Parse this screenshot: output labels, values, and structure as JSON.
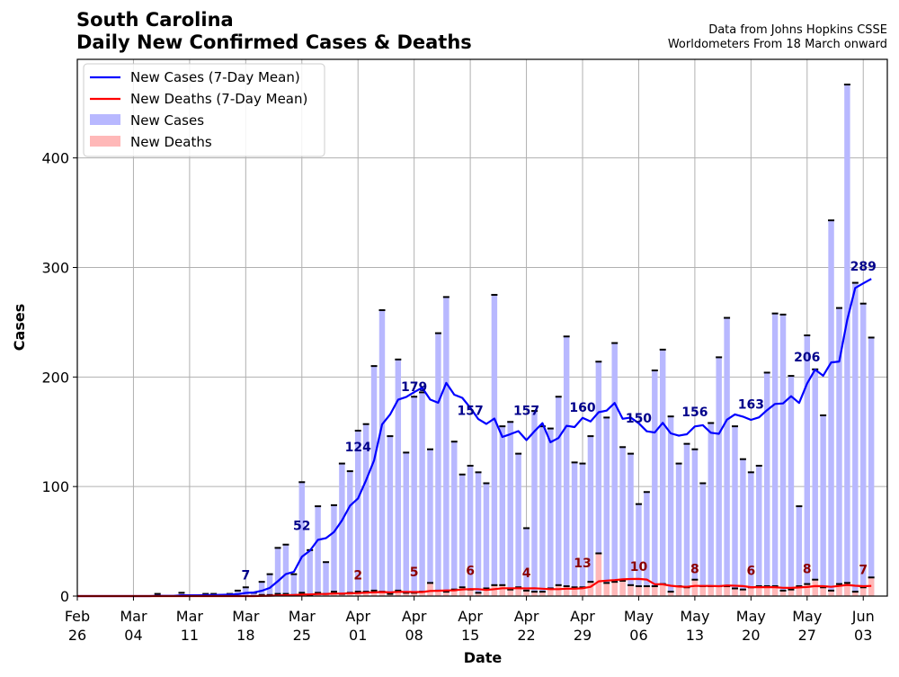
{
  "chart_data": {
    "type": "bar",
    "title_line1": "South Carolina",
    "title_line2": "Daily New Confirmed Cases & Deaths",
    "source_line1": "Data from Johns Hopkins CSSE",
    "source_line2": "Worldometers From 18 March onward",
    "xlabel": "Date",
    "ylabel": "Cases",
    "ylim": [
      0,
      490
    ],
    "yticks": [
      0,
      100,
      200,
      300,
      400
    ],
    "grid": true,
    "legend_position": "top-left",
    "x_start": "2020-02-26",
    "x_end": "2020-06-06",
    "xticks": [
      {
        "date": "2020-02-26",
        "line1": "Feb",
        "line2": "26"
      },
      {
        "date": "2020-03-04",
        "line1": "Mar",
        "line2": "04"
      },
      {
        "date": "2020-03-11",
        "line1": "Mar",
        "line2": "11"
      },
      {
        "date": "2020-03-18",
        "line1": "Mar",
        "line2": "18"
      },
      {
        "date": "2020-03-25",
        "line1": "Mar",
        "line2": "25"
      },
      {
        "date": "2020-04-01",
        "line1": "Apr",
        "line2": "01"
      },
      {
        "date": "2020-04-08",
        "line1": "Apr",
        "line2": "08"
      },
      {
        "date": "2020-04-15",
        "line1": "Apr",
        "line2": "15"
      },
      {
        "date": "2020-04-22",
        "line1": "Apr",
        "line2": "22"
      },
      {
        "date": "2020-04-29",
        "line1": "Apr",
        "line2": "29"
      },
      {
        "date": "2020-05-06",
        "line1": "May",
        "line2": "06"
      },
      {
        "date": "2020-05-13",
        "line1": "May",
        "line2": "13"
      },
      {
        "date": "2020-05-20",
        "line1": "May",
        "line2": "20"
      },
      {
        "date": "2020-05-27",
        "line1": "May",
        "line2": "27"
      },
      {
        "date": "2020-06-03",
        "line1": "Jun",
        "line2": "03"
      }
    ],
    "dates_first": "2020-02-26",
    "new_cases": [
      0,
      0,
      0,
      0,
      0,
      0,
      0,
      0,
      0,
      0,
      2,
      0,
      0,
      3,
      0,
      0,
      2,
      2,
      1,
      2,
      5,
      8,
      3,
      13,
      20,
      44,
      47,
      20,
      104,
      42,
      82,
      31,
      83,
      121,
      114,
      151,
      157,
      210,
      261,
      146,
      216,
      131,
      182,
      186,
      134,
      240,
      273,
      141,
      111,
      119,
      113,
      103,
      275,
      155,
      159,
      130,
      62,
      169,
      155,
      153,
      182,
      237,
      122,
      121,
      146,
      214,
      163,
      231,
      136,
      130,
      84,
      95,
      206,
      225,
      164,
      121,
      139,
      134,
      103,
      158,
      218,
      254,
      155,
      125,
      113,
      119,
      204,
      258,
      257,
      201,
      82,
      238,
      207,
      165,
      343,
      263,
      467,
      286,
      267,
      236
    ],
    "new_deaths": [
      0,
      0,
      0,
      0,
      0,
      0,
      0,
      0,
      0,
      0,
      0,
      0,
      0,
      0,
      0,
      0,
      0,
      0,
      0,
      0,
      0,
      0,
      0,
      1,
      1,
      2,
      2,
      1,
      3,
      1,
      3,
      2,
      4,
      2,
      3,
      4,
      4,
      5,
      4,
      2,
      5,
      3,
      3,
      4,
      12,
      5,
      4,
      6,
      8,
      6,
      3,
      7,
      10,
      10,
      6,
      8,
      5,
      4,
      4,
      7,
      10,
      9,
      8,
      8,
      13,
      39,
      12,
      13,
      14,
      10,
      9,
      9,
      9,
      11,
      4,
      9,
      8,
      15,
      9,
      9,
      9,
      9,
      7,
      6,
      8,
      9,
      9,
      9,
      5,
      6,
      9,
      11,
      15,
      8,
      5,
      11,
      12,
      4,
      8,
      17
    ],
    "annotations_cases": [
      {
        "date": "2020-03-18",
        "value": 7,
        "text": "7"
      },
      {
        "date": "2020-03-25",
        "value": 52,
        "text": "52"
      },
      {
        "date": "2020-04-01",
        "value": 124,
        "text": "124"
      },
      {
        "date": "2020-04-08",
        "value": 179,
        "text": "179"
      },
      {
        "date": "2020-04-15",
        "value": 157,
        "text": "157"
      },
      {
        "date": "2020-04-22",
        "value": 157,
        "text": "157"
      },
      {
        "date": "2020-04-29",
        "value": 160,
        "text": "160"
      },
      {
        "date": "2020-05-06",
        "value": 150,
        "text": "150"
      },
      {
        "date": "2020-05-13",
        "value": 156,
        "text": "156"
      },
      {
        "date": "2020-05-20",
        "value": 163,
        "text": "163"
      },
      {
        "date": "2020-05-27",
        "value": 206,
        "text": "206"
      },
      {
        "date": "2020-06-03",
        "value": 289,
        "text": "289"
      }
    ],
    "annotations_deaths": [
      {
        "date": "2020-04-01",
        "value": 2,
        "text": "2"
      },
      {
        "date": "2020-04-08",
        "value": 5,
        "text": "5"
      },
      {
        "date": "2020-04-15",
        "value": 6,
        "text": "6"
      },
      {
        "date": "2020-04-22",
        "value": 4,
        "text": "4"
      },
      {
        "date": "2020-04-29",
        "value": 13,
        "text": "13"
      },
      {
        "date": "2020-05-06",
        "value": 10,
        "text": "10"
      },
      {
        "date": "2020-05-13",
        "value": 8,
        "text": "8"
      },
      {
        "date": "2020-05-20",
        "value": 6,
        "text": "6"
      },
      {
        "date": "2020-05-27",
        "value": 8,
        "text": "8"
      },
      {
        "date": "2020-06-03",
        "value": 7,
        "text": "7"
      }
    ],
    "series": [
      {
        "name": "New Cases (7-Day Mean)",
        "kind": "line",
        "color": "#0000ff"
      },
      {
        "name": "New Deaths (7-Day Mean)",
        "kind": "line",
        "color": "#ff0000"
      },
      {
        "name": "New Cases",
        "kind": "bar",
        "color": "#b8b8ff"
      },
      {
        "name": "New Deaths",
        "kind": "bar",
        "color": "#ffb8b8"
      }
    ]
  }
}
